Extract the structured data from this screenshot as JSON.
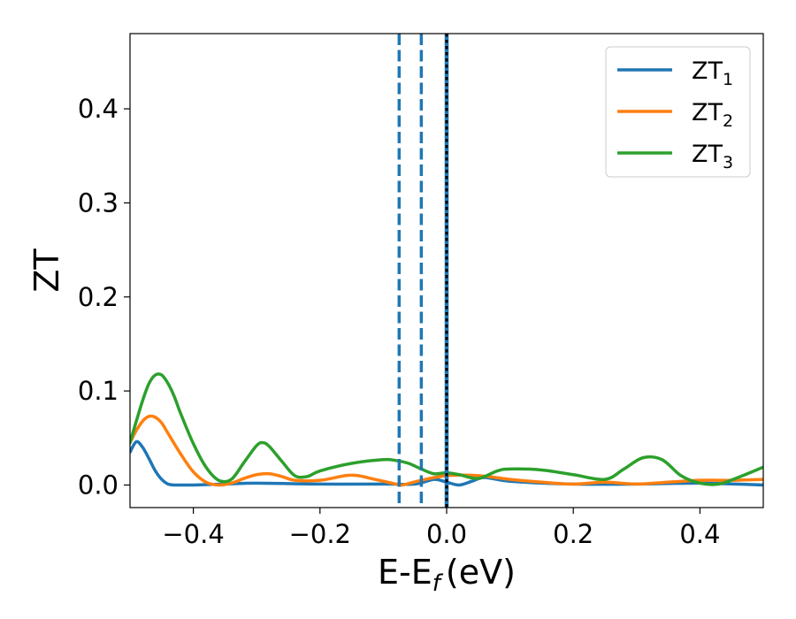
{
  "chart_data": {
    "type": "line",
    "xlabel": "E-E",
    "xlabel_sub": "f",
    "xlabel_unit": "(eV)",
    "ylabel": "ZT",
    "xlim": [
      -0.5,
      0.5
    ],
    "ylim": [
      -0.024,
      0.48
    ],
    "xticks": [
      -0.4,
      -0.2,
      0.0,
      0.2,
      0.4
    ],
    "xtick_labels": [
      "−0.4",
      "−0.2",
      "0.0",
      "0.2",
      "0.4"
    ],
    "yticks": [
      0.0,
      0.1,
      0.2,
      0.3,
      0.4
    ],
    "ytick_labels": [
      "0.0",
      "0.1",
      "0.2",
      "0.3",
      "0.4"
    ],
    "grid": false,
    "legend_position": "top-right",
    "vlines": [
      {
        "x": -0.075,
        "style": "dashed",
        "color": "#1f77b4"
      },
      {
        "x": -0.04,
        "style": "dashed",
        "color": "#1f77b4"
      },
      {
        "x": 0.0,
        "style": "solid",
        "color": "#1f77b4"
      },
      {
        "x": 0.0,
        "style": "dotted",
        "color": "#000000"
      }
    ],
    "series": [
      {
        "name": "ZT",
        "name_sub": "1",
        "color": "#1f77b4",
        "x": [
          -0.5,
          -0.49,
          -0.48,
          -0.47,
          -0.46,
          -0.45,
          -0.44,
          -0.43,
          -0.42,
          -0.4,
          -0.35,
          -0.3,
          -0.2,
          -0.1,
          -0.05,
          -0.02,
          0.0,
          0.02,
          0.04,
          0.06,
          0.1,
          0.2,
          0.3,
          0.4,
          0.5
        ],
        "y": [
          0.035,
          0.046,
          0.04,
          0.028,
          0.015,
          0.006,
          0.001,
          0.0,
          0.0,
          0.0,
          0.001,
          0.002,
          0.001,
          0.001,
          0.001,
          0.006,
          0.003,
          0.0,
          0.004,
          0.008,
          0.004,
          0.001,
          0.001,
          0.002,
          0.0
        ]
      },
      {
        "name": "ZT",
        "name_sub": "2",
        "color": "#ff7f0e",
        "x": [
          -0.5,
          -0.49,
          -0.48,
          -0.47,
          -0.46,
          -0.45,
          -0.44,
          -0.42,
          -0.4,
          -0.38,
          -0.36,
          -0.34,
          -0.32,
          -0.3,
          -0.28,
          -0.26,
          -0.24,
          -0.2,
          -0.16,
          -0.14,
          -0.12,
          -0.1,
          -0.08,
          -0.07,
          -0.04,
          0.0,
          0.05,
          0.1,
          0.15,
          0.2,
          0.25,
          0.3,
          0.35,
          0.4,
          0.45,
          0.5
        ],
        "y": [
          0.045,
          0.058,
          0.068,
          0.073,
          0.072,
          0.066,
          0.055,
          0.033,
          0.014,
          0.003,
          0.0,
          0.002,
          0.007,
          0.011,
          0.012,
          0.009,
          0.005,
          0.005,
          0.01,
          0.01,
          0.007,
          0.004,
          0.001,
          0.0,
          0.005,
          0.01,
          0.01,
          0.006,
          0.003,
          0.001,
          0.003,
          0.001,
          0.003,
          0.005,
          0.005,
          0.006
        ]
      },
      {
        "name": "ZT",
        "name_sub": "3",
        "color": "#2ca02c",
        "x": [
          -0.5,
          -0.49,
          -0.48,
          -0.47,
          -0.46,
          -0.45,
          -0.44,
          -0.43,
          -0.42,
          -0.4,
          -0.38,
          -0.36,
          -0.34,
          -0.32,
          -0.3,
          -0.29,
          -0.28,
          -0.26,
          -0.24,
          -0.22,
          -0.2,
          -0.15,
          -0.1,
          -0.08,
          -0.06,
          -0.04,
          -0.02,
          0.0,
          0.02,
          0.05,
          0.08,
          0.1,
          0.15,
          0.2,
          0.25,
          0.28,
          0.31,
          0.34,
          0.37,
          0.4,
          0.43,
          0.46,
          0.5
        ],
        "y": [
          0.045,
          0.068,
          0.09,
          0.108,
          0.117,
          0.117,
          0.108,
          0.094,
          0.076,
          0.044,
          0.019,
          0.005,
          0.006,
          0.024,
          0.042,
          0.045,
          0.041,
          0.025,
          0.01,
          0.009,
          0.015,
          0.023,
          0.027,
          0.026,
          0.023,
          0.017,
          0.012,
          0.013,
          0.011,
          0.007,
          0.015,
          0.017,
          0.016,
          0.011,
          0.006,
          0.017,
          0.029,
          0.027,
          0.01,
          0.002,
          0.001,
          0.008,
          0.019
        ]
      }
    ]
  }
}
